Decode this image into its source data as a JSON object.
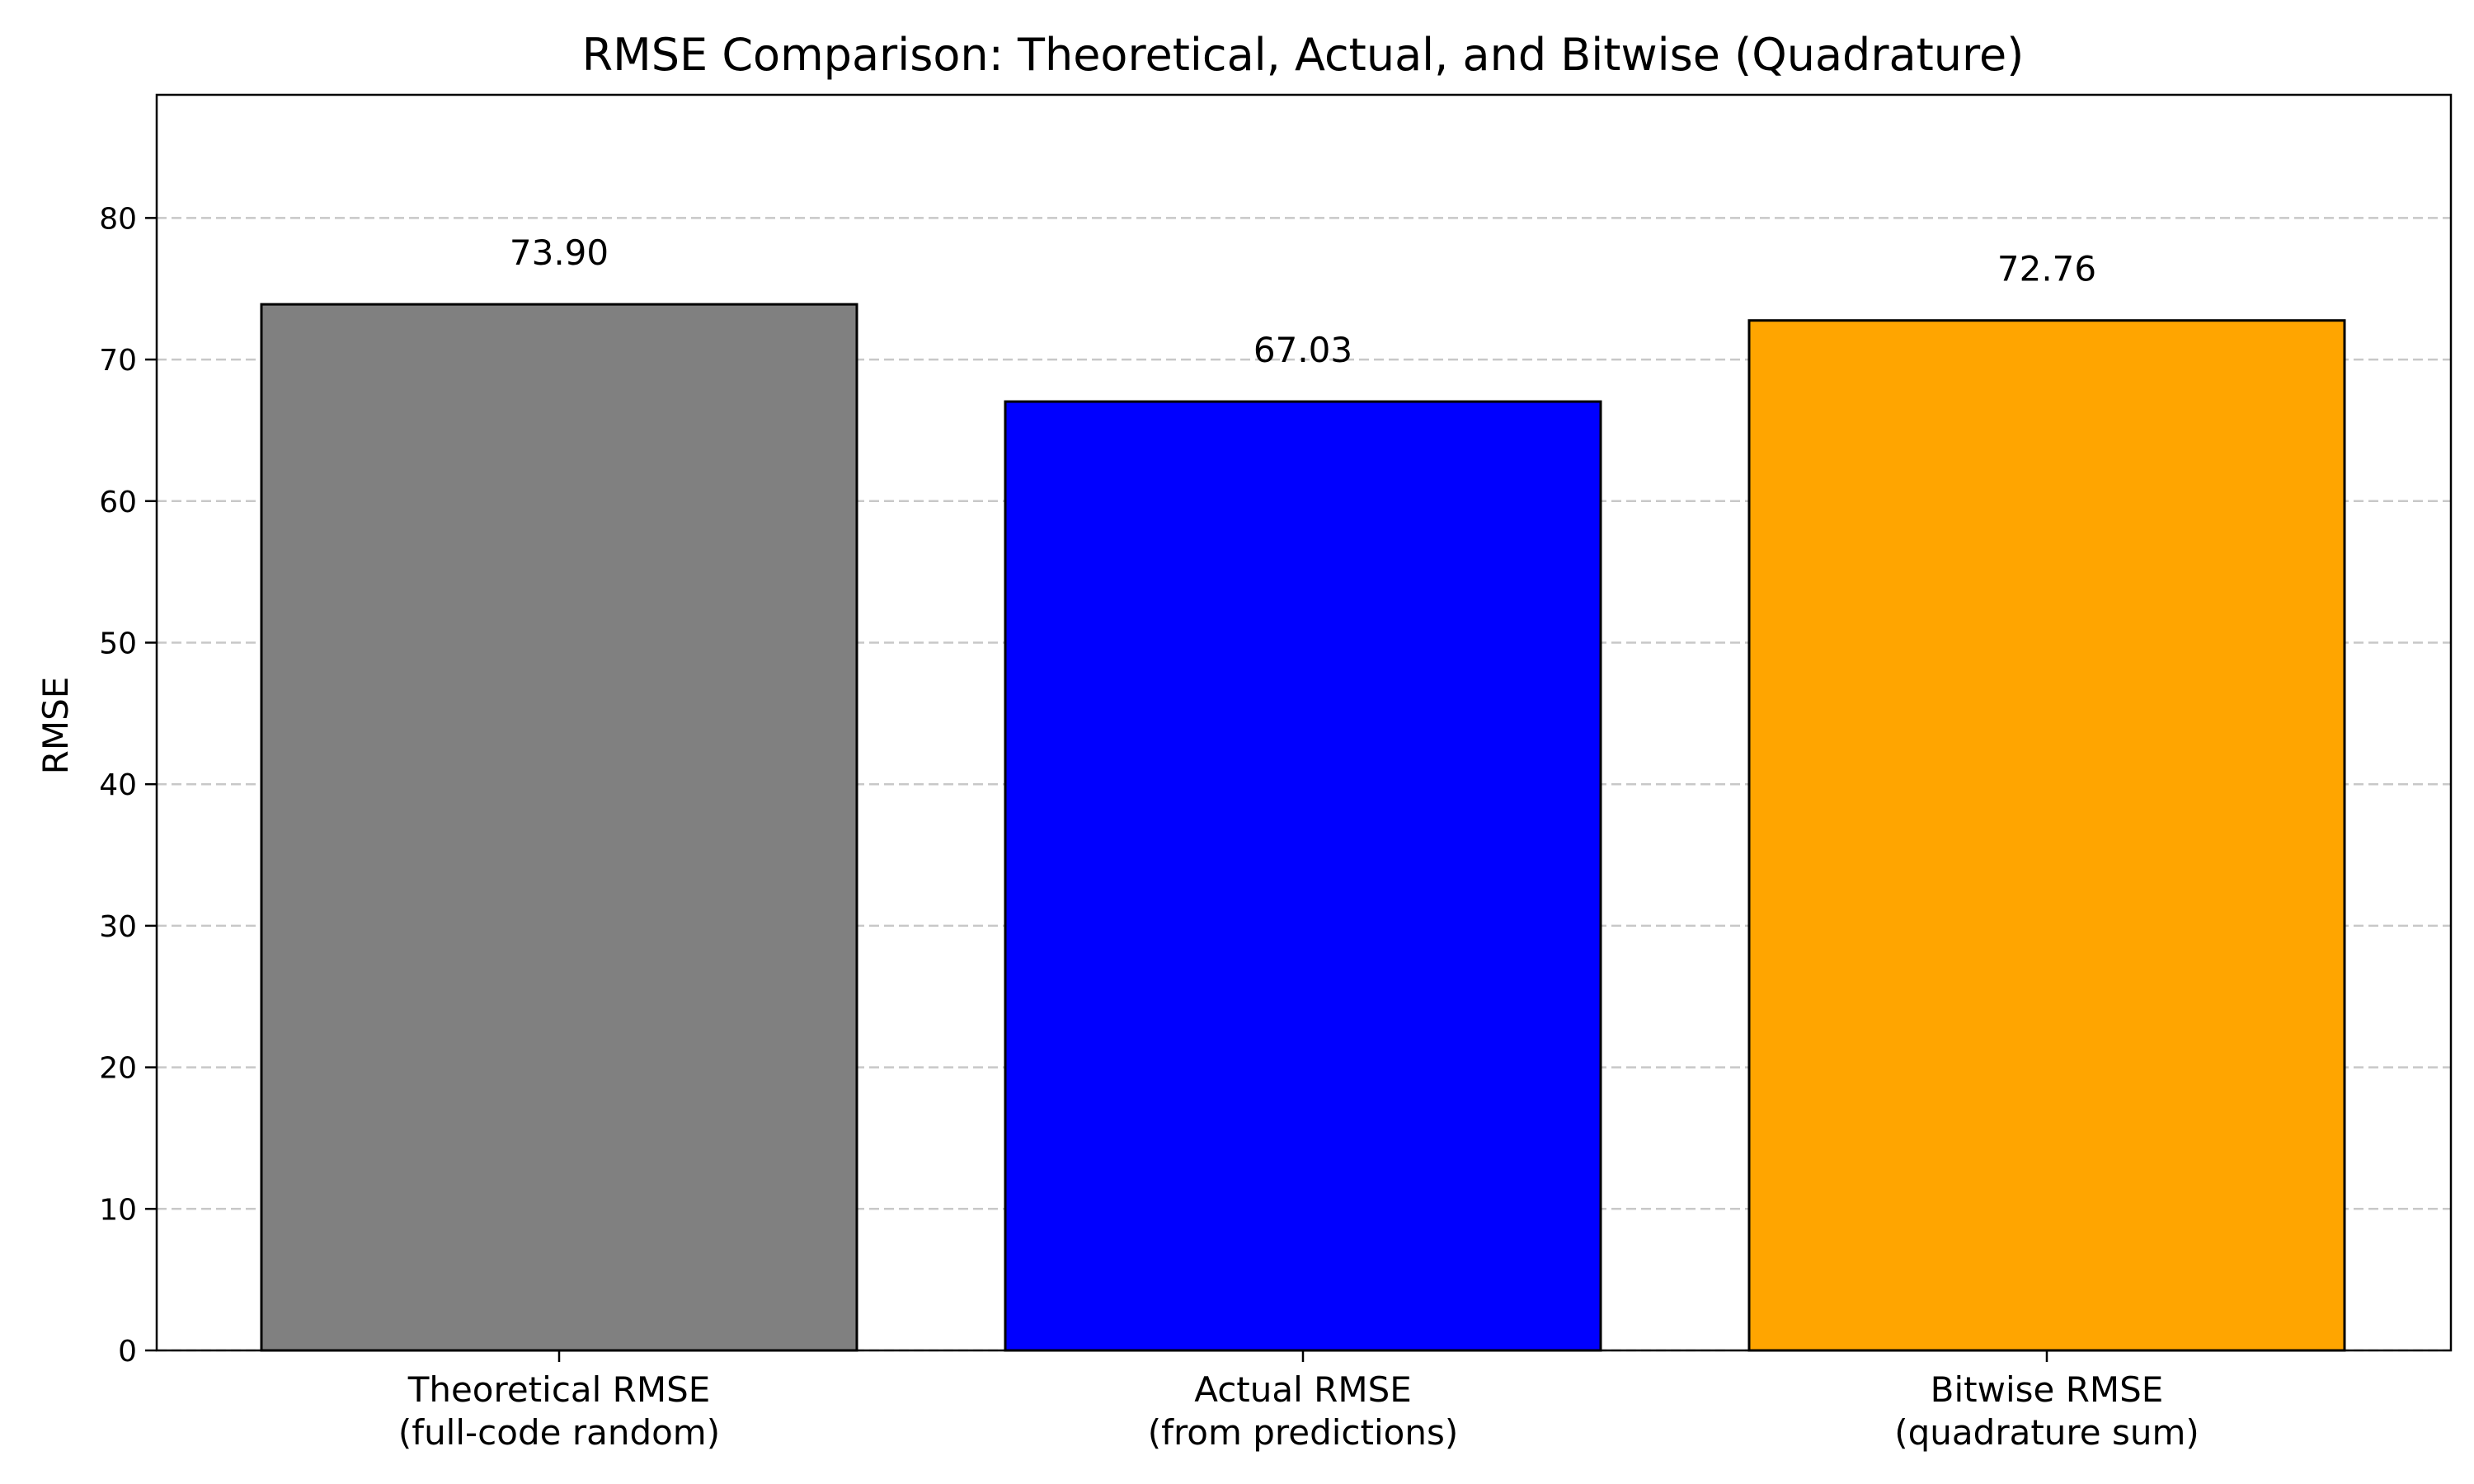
{
  "chart_data": {
    "type": "bar",
    "title": "RMSE Comparison: Theoretical, Actual, and Bitwise (Quadrature)",
    "xlabel": "",
    "ylabel": "RMSE",
    "ylim": [
      0,
      88.7
    ],
    "yticks": [
      0,
      10,
      20,
      30,
      40,
      50,
      60,
      70,
      80
    ],
    "grid": "y-dashed",
    "categories": [
      [
        "Theoretical RMSE",
        "(full-code random)"
      ],
      [
        "Actual RMSE",
        "(from predictions)"
      ],
      [
        "Bitwise RMSE",
        "(quadrature sum)"
      ]
    ],
    "values": [
      73.9,
      67.03,
      72.76
    ],
    "data_labels": [
      "73.90",
      "67.03",
      "72.76"
    ],
    "colors": [
      "#808080",
      "#0000ff",
      "#ffa500"
    ]
  }
}
